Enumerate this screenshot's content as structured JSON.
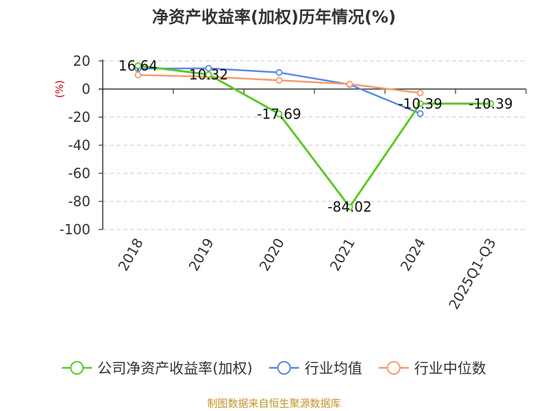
{
  "chart_data": {
    "type": "line",
    "title": "净资产收益率(加权)历年情况(%)",
    "ylabel": "(%)",
    "xlabel": "",
    "categories": [
      "2018",
      "2019",
      "2020",
      "2021",
      "2024",
      "2025Q1-Q3"
    ],
    "ylim": [
      -100,
      20
    ],
    "yticks": [
      20,
      0,
      -20,
      -40,
      -60,
      -80,
      -100
    ],
    "grid": true,
    "legend_position": "bottom",
    "series": [
      {
        "name": "公司净资产收益率(加权)",
        "color": "#5bc726",
        "values": [
          16.64,
          10.32,
          -17.69,
          -84.02,
          -10.39,
          -10.39
        ],
        "labels": [
          "16.64",
          "10.32",
          "-17.69",
          "-84.02",
          "-10.39",
          "-10.39"
        ]
      },
      {
        "name": "行业均值",
        "color": "#5b86e5",
        "values": [
          14.5,
          14.8,
          11.8,
          3.2,
          -17.5,
          null
        ]
      },
      {
        "name": "行业中位数",
        "color": "#f79a6b",
        "values": [
          10.0,
          8.8,
          6.2,
          3.5,
          -2.8,
          null
        ]
      }
    ]
  },
  "footer": {
    "source": "制图数据来自恒生聚源数据库"
  }
}
